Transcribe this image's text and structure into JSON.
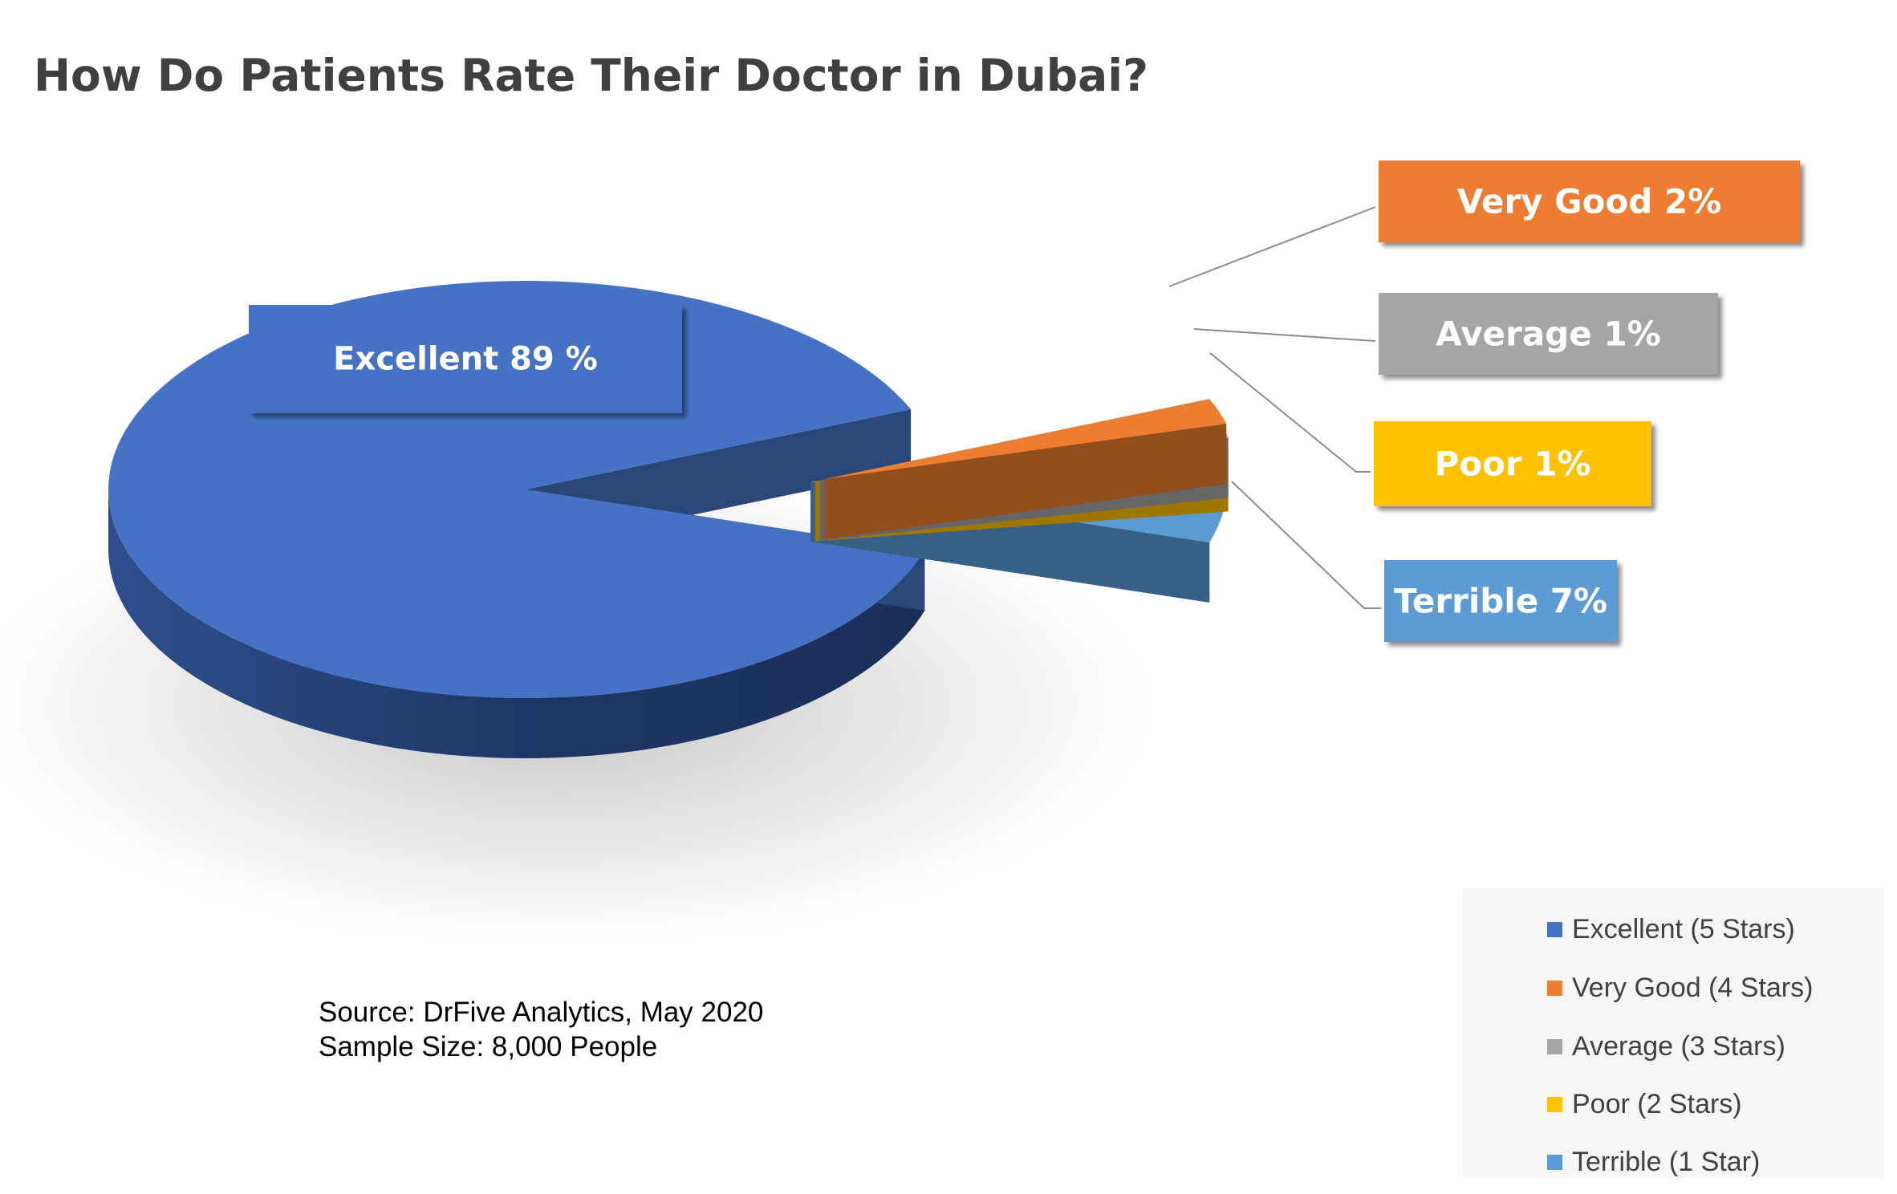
{
  "title": "How Do Patients Rate Their Doctor in Dubai?",
  "source": {
    "line1": "Source: DrFive Analytics, May 2020",
    "line2": "Sample Size: 8,000 People"
  },
  "chart_data": {
    "type": "pie",
    "title": "How Do Patients Rate Their Doctor in Dubai?",
    "variant": "3d-exploded",
    "legend_position": "bottom-right",
    "slices": [
      {
        "name": "Excellent (5 Stars)",
        "value": 89,
        "label": "Excellent 89 %",
        "color": "#4472c4"
      },
      {
        "name": "Very Good (4 Stars)",
        "value": 2,
        "label": "Very Good 2%",
        "color": "#ed7d31"
      },
      {
        "name": "Average (3 Stars)",
        "value": 1,
        "label": "Average 1%",
        "color": "#a5a5a5"
      },
      {
        "name": "Poor (2 Stars)",
        "value": 1,
        "label": "Poor 1%",
        "color": "#ffc000"
      },
      {
        "name": "Terrible (1 Star)",
        "value": 7,
        "label": "Terrible 7%",
        "color": "#5b9bd5"
      }
    ]
  }
}
